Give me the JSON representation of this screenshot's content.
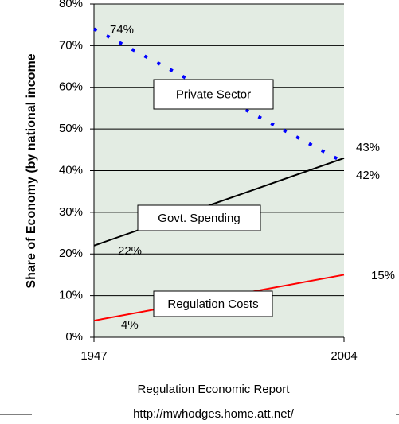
{
  "chart_data": {
    "type": "line",
    "y_label": "Share of Economy (by national income",
    "source": "Regulation Economic Report",
    "url": "http://mwhodges.home.att.net/",
    "x": [
      1947,
      2004
    ],
    "xlim": [
      1947,
      2004
    ],
    "xticks": [
      1947,
      2004
    ],
    "ylim": [
      0,
      80
    ],
    "yticks": [
      {
        "value": 0,
        "label": "0%"
      },
      {
        "value": 10,
        "label": "10%"
      },
      {
        "value": 20,
        "label": "20%"
      },
      {
        "value": 30,
        "label": "30%"
      },
      {
        "value": 40,
        "label": "40%"
      },
      {
        "value": 50,
        "label": "50%"
      },
      {
        "value": 60,
        "label": "60%"
      },
      {
        "value": 70,
        "label": "70%"
      },
      {
        "value": 80,
        "label": "80%"
      }
    ],
    "grid": true,
    "series": [
      {
        "name": "Private Sector",
        "color": "#0000ff",
        "style": "dotted",
        "values": [
          74,
          42
        ],
        "value_labels": [
          "74%",
          "42%"
        ]
      },
      {
        "name": "Govt. Spending",
        "color": "#000000",
        "style": "solid",
        "values": [
          22,
          43
        ],
        "value_labels": [
          "22%",
          "43%"
        ]
      },
      {
        "name": "Regulation Costs",
        "color": "#ff0000",
        "style": "solid",
        "values": [
          4,
          15
        ],
        "value_labels": [
          "4%",
          "15%"
        ]
      }
    ]
  }
}
